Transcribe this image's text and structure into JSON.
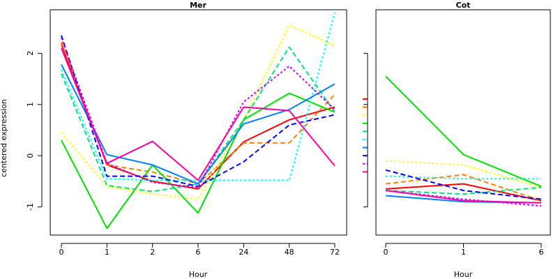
{
  "ylabel": "centered expression",
  "chart_data": [
    {
      "type": "line",
      "title": "Mer",
      "xlabel": "Hour",
      "ylabel": "centered expression",
      "categories": [
        "0",
        "1",
        "2",
        "6",
        "24",
        "48",
        "72"
      ],
      "ylim": [
        -1.55,
        2.85
      ],
      "yticks": [
        -1,
        0,
        1,
        2
      ],
      "grid": false,
      "legend": "none",
      "series": [
        {
          "color": "#ff0000",
          "dash": "solid",
          "values": [
            2.18,
            -0.18,
            -0.5,
            -0.65,
            0.27,
            0.7,
            0.95
          ]
        },
        {
          "color": "#ff8000",
          "dash": "dashed",
          "values": [
            2.22,
            -0.18,
            -0.32,
            -0.55,
            0.25,
            0.25,
            1.2
          ]
        },
        {
          "color": "#ffff00",
          "dash": "dotted",
          "values": [
            0.45,
            -0.6,
            -0.75,
            -0.85,
            0.7,
            2.55,
            2.15
          ]
        },
        {
          "color": "#00e000",
          "dash": "solid",
          "values": [
            0.3,
            -1.42,
            -0.18,
            -1.12,
            0.7,
            1.22,
            0.85
          ]
        },
        {
          "color": "#00e080",
          "dash": "dashed",
          "values": [
            1.6,
            -0.58,
            -0.7,
            -0.55,
            0.7,
            2.12,
            0.85
          ]
        },
        {
          "color": "#00ffff",
          "dash": "dotted",
          "values": [
            1.68,
            -0.45,
            -0.48,
            -0.48,
            -0.48,
            -0.48,
            2.8
          ]
        },
        {
          "color": "#0080ff",
          "dash": "solid",
          "values": [
            1.78,
            0.02,
            -0.18,
            -0.55,
            0.62,
            0.9,
            1.4
          ]
        },
        {
          "color": "#0000ff",
          "dash": "dashed",
          "values": [
            2.35,
            -0.4,
            -0.4,
            -0.6,
            -0.12,
            0.6,
            0.8
          ]
        },
        {
          "color": "#c000ff",
          "dash": "dotted",
          "values": [
            2.3,
            -0.15,
            -0.52,
            -0.62,
            1.05,
            1.75,
            0.9
          ]
        },
        {
          "color": "#ff00a0",
          "dash": "solid",
          "values": [
            2.1,
            -0.15,
            0.28,
            -0.48,
            0.95,
            0.88,
            -0.2
          ]
        }
      ]
    },
    {
      "type": "line",
      "title": "Cot",
      "xlabel": "Hour",
      "categories": [
        "0",
        "1",
        "6"
      ],
      "ylim": [
        -1.55,
        2.85
      ],
      "grid": false,
      "legend": "left-outside",
      "series": [
        {
          "color": "#ff0000",
          "dash": "solid",
          "values": [
            -0.65,
            -0.55,
            -0.88
          ]
        },
        {
          "color": "#ff8000",
          "dash": "dashed",
          "values": [
            -0.55,
            -0.37,
            -0.88
          ]
        },
        {
          "color": "#ffff00",
          "dash": "dotted",
          "values": [
            -0.1,
            -0.18,
            -0.62
          ]
        },
        {
          "color": "#00e000",
          "dash": "solid",
          "values": [
            1.55,
            0.02,
            -0.6
          ]
        },
        {
          "color": "#00e080",
          "dash": "dashed",
          "values": [
            -0.68,
            -0.75,
            -0.62
          ]
        },
        {
          "color": "#00ffff",
          "dash": "dotted",
          "values": [
            -0.4,
            -0.45,
            -0.45
          ]
        },
        {
          "color": "#0080ff",
          "dash": "solid",
          "values": [
            -0.78,
            -0.9,
            -0.92
          ]
        },
        {
          "color": "#0000ff",
          "dash": "dashed",
          "values": [
            -0.28,
            -0.68,
            -0.85
          ]
        },
        {
          "color": "#c000ff",
          "dash": "dotted",
          "values": [
            -0.68,
            -0.85,
            -0.98
          ]
        },
        {
          "color": "#ff00a0",
          "dash": "solid",
          "values": [
            -0.68,
            -0.88,
            -0.92
          ]
        }
      ]
    }
  ]
}
